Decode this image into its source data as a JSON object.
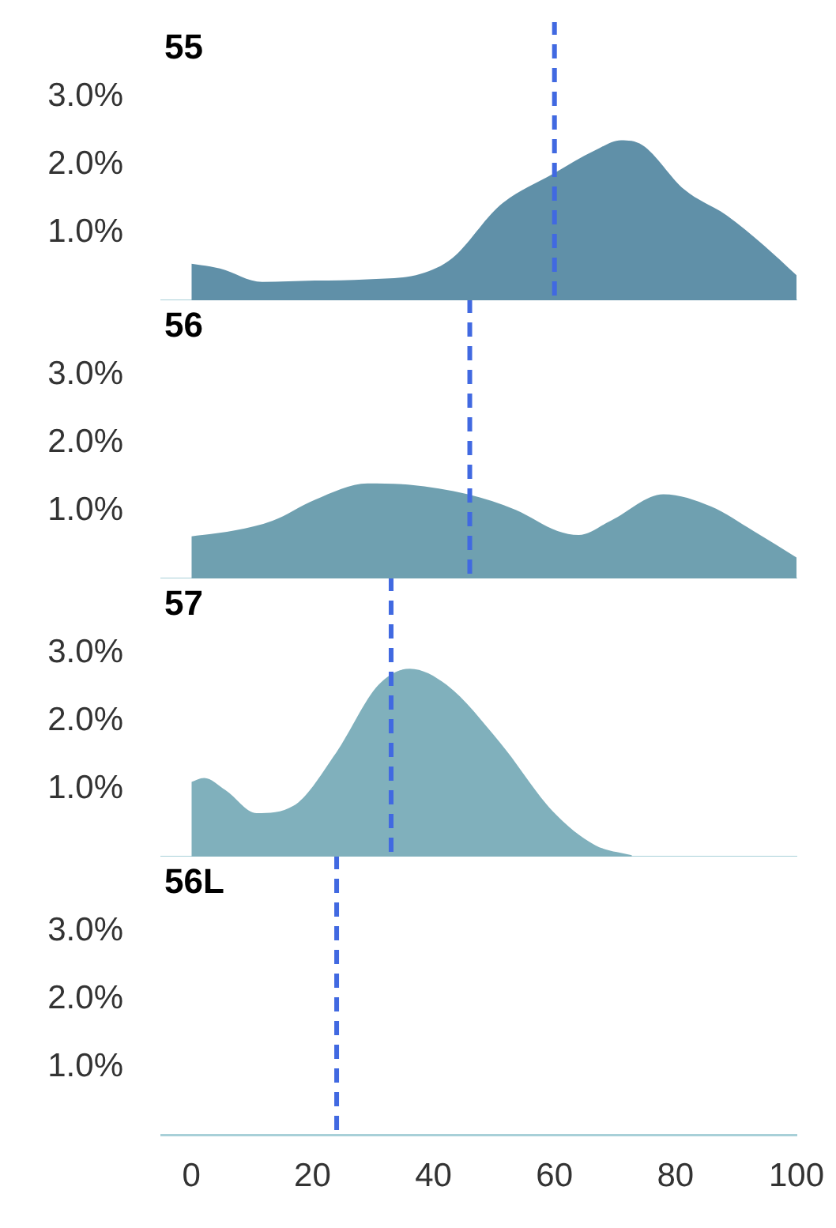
{
  "chart_data": [
    {
      "type": "area",
      "title": "55",
      "xlim": [
        -5,
        100
      ],
      "ylim": [
        0,
        4.1
      ],
      "yticks": [
        {
          "value": 1,
          "label": "1.0%"
        },
        {
          "value": 2,
          "label": "2.0%"
        },
        {
          "value": 3,
          "label": "3.0%"
        }
      ],
      "tick_labels": "y",
      "grid": false,
      "legend": false,
      "series": [
        {
          "color": "#6090a8",
          "x": [
            0,
            4.7,
            11.7,
            20.4,
            29.1,
            37.9,
            43.1,
            51,
            59.7,
            66.7,
            71,
            74.5,
            81.5,
            88.5,
            94.6,
            100
          ],
          "values": [
            0.54,
            0.47,
            0.27,
            0.29,
            0.31,
            0.39,
            0.62,
            1.4,
            1.86,
            2.21,
            2.36,
            2.29,
            1.63,
            1.25,
            0.81,
            0.37
          ]
        }
      ],
      "ref_lines": [
        {
          "axis": "x",
          "value": 60,
          "color": "#4169e1",
          "line_style": "dashed"
        }
      ]
    },
    {
      "type": "area",
      "title": "56",
      "xlim": [
        -5,
        100
      ],
      "ylim": [
        0,
        4.1
      ],
      "yticks": [
        {
          "value": 1,
          "label": "1.0%"
        },
        {
          "value": 2,
          "label": "2.0%"
        },
        {
          "value": 3,
          "label": "3.0%"
        }
      ],
      "tick_labels": "y",
      "grid": false,
      "legend": false,
      "series": [
        {
          "color": "#6fa0b0",
          "x": [
            0,
            7.3,
            13.4,
            20.4,
            29.1,
            36.1,
            45.7,
            53.6,
            60.5,
            64,
            69.3,
            78,
            85.9,
            92.9,
            100
          ],
          "values": [
            0.62,
            0.71,
            0.85,
            1.16,
            1.4,
            1.38,
            1.24,
            1.01,
            0.7,
            0.64,
            0.85,
            1.24,
            1.06,
            0.7,
            0.31
          ]
        }
      ],
      "ref_lines": [
        {
          "axis": "x",
          "value": 46,
          "color": "#4169e1",
          "line_style": "dashed"
        }
      ]
    },
    {
      "type": "area",
      "title": "57",
      "xlim": [
        -5,
        100
      ],
      "ylim": [
        0,
        4.1
      ],
      "yticks": [
        {
          "value": 1,
          "label": "1.0%"
        },
        {
          "value": 2,
          "label": "2.0%"
        },
        {
          "value": 3,
          "label": "3.0%"
        }
      ],
      "tick_labels": "y",
      "grid": false,
      "legend": false,
      "series": [
        {
          "color": "#80b0bc",
          "x": [
            0,
            2.1,
            5.6,
            10.8,
            16.9,
            23.9,
            30.9,
            36.1,
            42.2,
            51,
            59.7,
            66.7,
            72.8
          ],
          "values": [
            1.1,
            1.16,
            0.98,
            0.64,
            0.75,
            1.53,
            2.53,
            2.77,
            2.53,
            1.68,
            0.67,
            0.17,
            0.02
          ]
        }
      ],
      "ref_lines": [
        {
          "axis": "x",
          "value": 33,
          "color": "#4169e1",
          "line_style": "dashed"
        }
      ]
    },
    {
      "type": "area",
      "title": "56L",
      "xlim": [
        -5,
        100
      ],
      "ylim": [
        0,
        4.1
      ],
      "xticks": [
        0,
        20,
        40,
        60,
        80,
        100
      ],
      "yticks": [
        {
          "value": 1,
          "label": "1.0%"
        },
        {
          "value": 2,
          "label": "2.0%"
        },
        {
          "value": 3,
          "label": "3.0%"
        }
      ],
      "grid": false,
      "legend": false,
      "ref_lines": [
        {
          "axis": "x",
          "value": 24,
          "color": "#4169e1",
          "line_style": "dashed"
        }
      ]
    }
  ]
}
